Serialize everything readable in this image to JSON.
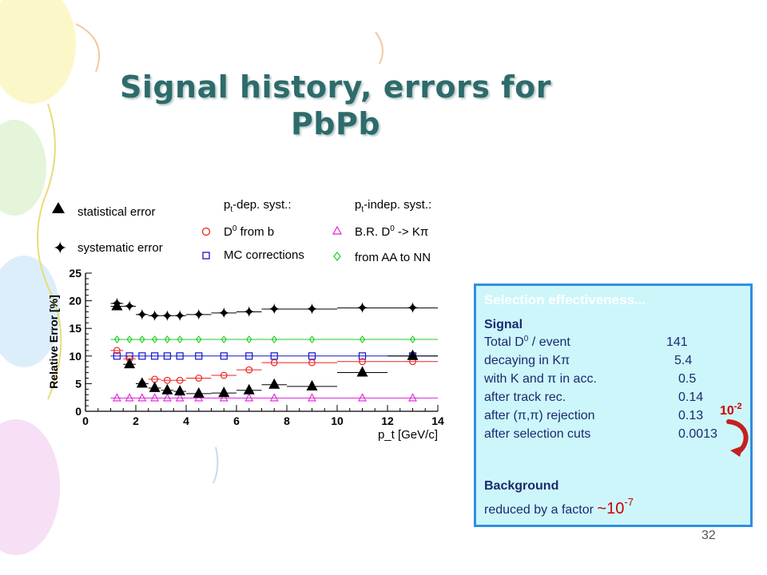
{
  "slide": {
    "title_line1": "Signal history, errors for",
    "title_line2": "PbPb",
    "page_number": "32"
  },
  "chart_data": {
    "type": "scatter",
    "xlabel": "p_t [GeV/c]",
    "ylabel": "Relative Error [%]",
    "xlim": [
      0,
      14
    ],
    "ylim": [
      0,
      25
    ],
    "xticks": [
      0,
      2,
      4,
      6,
      8,
      10,
      12,
      14
    ],
    "yticks": [
      0,
      5,
      10,
      15,
      20,
      25
    ],
    "grid": false,
    "legend": {
      "statistical": "statistical error",
      "systematic": "systematic error",
      "dep_header_pre": "p",
      "dep_header_sub": "t",
      "dep_header_post": "-dep. syst.:",
      "indep_header_pre": "p",
      "indep_header_sub": "t",
      "indep_header_post": "-indep. syst.:",
      "d0_from_b": "D",
      "d0_from_b_sup": "0",
      "d0_from_b_post": " from b",
      "mc": "MC corrections",
      "br": "B.R. D",
      "br_sup": "0",
      "br_post": " -> Kπ",
      "aa": "from AA to NN"
    },
    "series": [
      {
        "name": "statistical error",
        "color": "#000000",
        "marker": "triangle",
        "x": [
          1.25,
          1.75,
          2.25,
          2.75,
          3.25,
          3.75,
          4.5,
          5.5,
          6.5,
          7.5,
          9,
          11,
          13
        ],
        "y": [
          19,
          8.5,
          5,
          4.2,
          3.8,
          3.6,
          3.2,
          3.3,
          3.8,
          4.8,
          4.5,
          7,
          10
        ],
        "xerr": [
          0.25,
          0.25,
          0.25,
          0.25,
          0.25,
          0.25,
          0.5,
          0.5,
          0.5,
          0.5,
          1,
          1,
          1
        ]
      },
      {
        "name": "systematic error",
        "color": "#000000",
        "marker": "star",
        "x": [
          1.25,
          1.75,
          2.25,
          2.75,
          3.25,
          3.75,
          4.5,
          5.5,
          6.5,
          7.5,
          9,
          11,
          13
        ],
        "y": [
          19.5,
          19,
          17.5,
          17.3,
          17.3,
          17.3,
          17.5,
          17.8,
          18,
          18.5,
          18.5,
          18.7,
          18.7
        ],
        "xerr": [
          0.25,
          0.25,
          0.25,
          0.25,
          0.25,
          0.25,
          0.5,
          0.5,
          0.5,
          0.5,
          1,
          1,
          1
        ]
      },
      {
        "name": "D0 from b",
        "color": "#ee2222",
        "marker": "circle",
        "x": [
          1.25,
          1.75,
          2.25,
          2.75,
          3.25,
          3.75,
          4.5,
          5.5,
          6.5,
          7.5,
          9,
          11,
          13
        ],
        "y": [
          11,
          9.5,
          5,
          5.8,
          5.6,
          5.6,
          6,
          6.5,
          7.5,
          8.8,
          8.8,
          9,
          9
        ],
        "xerr": [
          0.25,
          0.25,
          0.25,
          0.25,
          0.25,
          0.25,
          0.5,
          0.5,
          0.5,
          0.5,
          1,
          1,
          1
        ]
      },
      {
        "name": "MC corrections",
        "color": "#1515cc",
        "marker": "square",
        "x": [
          1.25,
          1.75,
          2.25,
          2.75,
          3.25,
          3.75,
          4.5,
          5.5,
          6.5,
          7.5,
          9,
          11,
          13
        ],
        "y": [
          10,
          10,
          10,
          10,
          10,
          10,
          10,
          10,
          10,
          10,
          10,
          10,
          10
        ],
        "xerr": [
          0.25,
          0.25,
          0.25,
          0.25,
          0.25,
          0.25,
          0.5,
          0.5,
          0.5,
          0.5,
          1,
          1,
          1
        ]
      },
      {
        "name": "B.R. D0 -> Kpi",
        "color": "#dd22dd",
        "marker": "triangle-open",
        "x": [
          1.25,
          1.75,
          2.25,
          2.75,
          3.25,
          3.75,
          4.5,
          5.5,
          6.5,
          7.5,
          9,
          11,
          13
        ],
        "y": [
          2.4,
          2.4,
          2.4,
          2.4,
          2.4,
          2.4,
          2.4,
          2.4,
          2.4,
          2.4,
          2.4,
          2.4,
          2.4
        ],
        "xerr": [
          0.25,
          0.25,
          0.25,
          0.25,
          0.25,
          0.25,
          0.5,
          0.5,
          0.5,
          0.5,
          1,
          1,
          1
        ]
      },
      {
        "name": "from AA to NN",
        "color": "#22cc22",
        "marker": "diamond",
        "x": [
          1.25,
          1.75,
          2.25,
          2.75,
          3.25,
          3.75,
          4.5,
          5.5,
          6.5,
          7.5,
          9,
          11,
          13
        ],
        "y": [
          13,
          13,
          13,
          13,
          13,
          13,
          13,
          13,
          13,
          13,
          13,
          13,
          13
        ],
        "xerr": [
          0.25,
          0.25,
          0.25,
          0.25,
          0.25,
          0.25,
          0.5,
          0.5,
          0.5,
          0.5,
          1,
          1,
          1
        ]
      }
    ]
  },
  "info_box": {
    "heading": "Selection effectiveness...",
    "signal_label": "Signal",
    "rows": [
      {
        "pre": "Total D",
        "sup": "0",
        "post": " / event",
        "value": "141"
      },
      {
        "pre": "decaying in Kπ",
        "sup": "",
        "post": "",
        "value": "5.4"
      },
      {
        "pre": "with K and π in acc.",
        "sup": "",
        "post": "",
        "value": "0.5"
      },
      {
        "pre": "after track rec.",
        "sup": "",
        "post": "",
        "value": "0.14"
      },
      {
        "pre": "after (π,π) rejection",
        "sup": "",
        "post": "",
        "value": "0.13"
      },
      {
        "pre": "after selection cuts",
        "sup": "",
        "post": "",
        "value": "0.0013"
      }
    ],
    "background_label": "Background",
    "reduced_text": "reduced by a factor ",
    "factor_prefix": "~10",
    "factor_exp": "-7",
    "note_base": "10",
    "note_exp": "-2"
  },
  "colors": {
    "title": "#2e6b6b",
    "box_bg": "#cdf6fb",
    "box_border": "#2f8fe0",
    "box_text": "#1a2a6e",
    "highlight": "#cc0000"
  }
}
